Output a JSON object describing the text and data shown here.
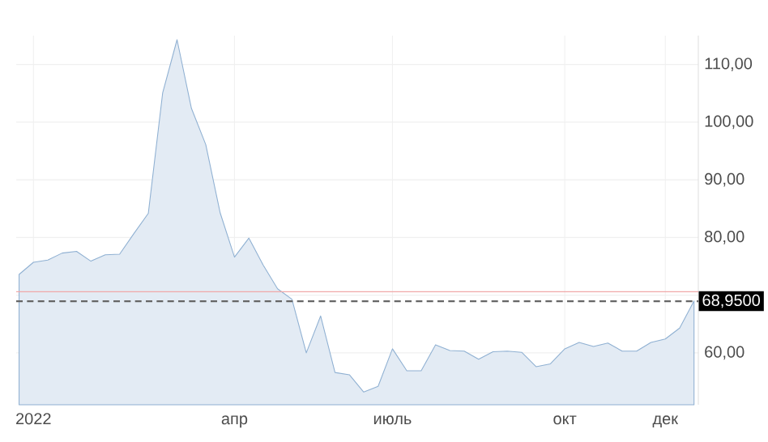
{
  "chart_data": {
    "type": "area",
    "color": "#8fb0d2",
    "categories": [
      null,
      "2022",
      null,
      null,
      null,
      null,
      null,
      null,
      null,
      null,
      null,
      null,
      null,
      null,
      null,
      "апр",
      null,
      null,
      null,
      null,
      null,
      null,
      null,
      null,
      null,
      null,
      "июль",
      null,
      null,
      null,
      null,
      null,
      null,
      null,
      null,
      null,
      null,
      null,
      "окт",
      null,
      null,
      null,
      null,
      null,
      null,
      "дек",
      null,
      null
    ],
    "values": [
      73.6,
      75.7,
      76.1,
      77.3,
      77.6,
      75.9,
      77.0,
      77.1,
      80.7,
      84.2,
      105.1,
      114.3,
      102.4,
      96.1,
      84.3,
      76.6,
      79.9,
      75.2,
      71.1,
      69.3,
      60.0,
      66.4,
      56.6,
      56.2,
      53.2,
      54.2,
      60.7,
      56.9,
      56.9,
      61.4,
      60.4,
      60.3,
      58.9,
      60.2,
      60.3,
      60.1,
      57.6,
      58.1,
      60.7,
      61.8,
      61.1,
      61.7,
      60.3,
      60.3,
      61.8,
      62.4,
      64.3,
      69.0
    ],
    "ylim": [
      51,
      115
    ],
    "yticks": [
      {
        "value": 60,
        "label": "60,00"
      },
      {
        "value": 70,
        "label": null
      },
      {
        "value": 80,
        "label": "80,00"
      },
      {
        "value": 90,
        "label": "90,00"
      },
      {
        "value": 100,
        "label": "100,00"
      },
      {
        "value": 110,
        "label": "110,00"
      }
    ],
    "grid": true,
    "ref_lines": [
      {
        "axis": "y",
        "value": 70.6,
        "color": "#f0a8a8",
        "line_style": "solid"
      },
      {
        "axis": "y",
        "value": 68.95,
        "label": "68,9500",
        "color": "#666666",
        "line_style": "dashed"
      }
    ]
  }
}
